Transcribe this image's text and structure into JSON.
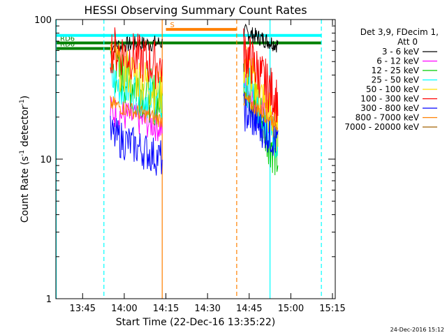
{
  "chart_data": {
    "type": "line",
    "title": "HESSI Observing Summary Count Rates",
    "xlabel": "Start Time (22-Dec-16 13:35:22)",
    "ylabel_main": "Count Rate (s",
    "ylabel_sup1": "-1",
    "ylabel_mid": " detector",
    "ylabel_sup2": "-1",
    "ylabel_end": ")",
    "y_scale": "log",
    "ylim": [
      1,
      100
    ],
    "xlim": [
      "13:35:22",
      "15:16:00"
    ],
    "x_ticks": [
      {
        "t": "13:45",
        "label": "13:45"
      },
      {
        "t": "14:00",
        "label": "14:00"
      },
      {
        "t": "14:15",
        "label": "14:15"
      },
      {
        "t": "14:30",
        "label": "14:30"
      },
      {
        "t": "14:45",
        "label": "14:45"
      },
      {
        "t": "15:00",
        "label": "15:00"
      },
      {
        "t": "15:15",
        "label": "15:15"
      }
    ],
    "y_ticks": [
      {
        "v": 1,
        "label": "1"
      },
      {
        "v": 10,
        "label": "10"
      },
      {
        "v": 100,
        "label": "100"
      }
    ],
    "legend_header": [
      "Det 3,9, FDecim 1,",
      "Att 0"
    ],
    "series": [
      {
        "name": "3 - 6 keV",
        "color": "#000000",
        "segments": [
          {
            "start": "13:55:00",
            "end": "14:13:40",
            "from": 65,
            "to": 68,
            "jitter": 0.06
          },
          {
            "start": "14:43:00",
            "end": "14:55:20",
            "from": 82,
            "to": 66,
            "jitter": 0.06
          }
        ]
      },
      {
        "name": "6 - 12 keV",
        "color": "#ff00ff",
        "segments": [
          {
            "start": "13:55:00",
            "end": "14:13:40",
            "from": 22,
            "to": 17,
            "jitter": 0.12
          },
          {
            "start": "14:43:00",
            "end": "14:55:20",
            "from": 35,
            "to": 16,
            "jitter": 0.12
          }
        ]
      },
      {
        "name": "12 - 25 keV",
        "color": "#00cc00",
        "segments": [
          {
            "start": "13:55:00",
            "end": "14:13:40",
            "from": 45,
            "to": 25,
            "jitter": 0.2
          },
          {
            "start": "14:43:00",
            "end": "14:55:20",
            "from": 40,
            "to": 10,
            "jitter": 0.2
          }
        ]
      },
      {
        "name": "25 - 50 keV",
        "color": "#00ffff",
        "segments": [
          {
            "start": "13:55:00",
            "end": "14:13:40",
            "from": 36,
            "to": 25,
            "jitter": 0.16
          },
          {
            "start": "14:43:00",
            "end": "14:55:20",
            "from": 38,
            "to": 13,
            "jitter": 0.16
          }
        ]
      },
      {
        "name": "50 - 100 keV",
        "color": "#ffe000",
        "segments": [
          {
            "start": "13:55:00",
            "end": "14:13:40",
            "from": 50,
            "to": 30,
            "jitter": 0.18
          },
          {
            "start": "14:43:00",
            "end": "14:55:20",
            "from": 50,
            "to": 16,
            "jitter": 0.18
          }
        ]
      },
      {
        "name": "100 - 300 keV",
        "color": "#ff0000",
        "segments": [
          {
            "start": "13:55:00",
            "end": "14:13:40",
            "from": 62,
            "to": 46,
            "jitter": 0.18
          },
          {
            "start": "14:43:00",
            "end": "14:55:20",
            "from": 60,
            "to": 26,
            "jitter": 0.18
          }
        ]
      },
      {
        "name": "300 - 800 keV",
        "color": "#0000ff",
        "segments": [
          {
            "start": "13:55:00",
            "end": "14:13:40",
            "from": 15,
            "to": 10,
            "jitter": 0.14
          },
          {
            "start": "14:43:00",
            "end": "14:55:20",
            "from": 22,
            "to": 13,
            "jitter": 0.14
          }
        ]
      },
      {
        "name": "800 - 7000 keV",
        "color": "#ff8000",
        "segments": [
          {
            "start": "13:55:00",
            "end": "14:13:40",
            "from": 25,
            "to": 19,
            "jitter": 0.06
          },
          {
            "start": "14:43:00",
            "end": "14:55:20",
            "from": 27,
            "to": 18,
            "jitter": 0.06
          }
        ]
      },
      {
        "name": "7000 - 20000 keV",
        "color": "#a06000",
        "segments": []
      }
    ],
    "flag_bars": [
      {
        "label": "RD6",
        "color": "#008000",
        "start": "13:35:22",
        "end": "15:11:00",
        "y": 68
      },
      {
        "label": "RD6",
        "color": "#008000",
        "start": "13:35:22",
        "end": "13:55:00",
        "y": 62
      },
      {
        "label": "S",
        "color": "#ff8000",
        "start": "14:15:00",
        "end": "14:40:30",
        "y": 85
      },
      {
        "label": "",
        "color": "#00ffff",
        "start": "13:35:22",
        "end": "15:11:00",
        "y": 77
      }
    ],
    "vertical_lines": [
      {
        "t": "13:35:30",
        "color": "#00ffff",
        "style": "solid"
      },
      {
        "t": "13:52:40",
        "color": "#00ffff",
        "style": "dashed"
      },
      {
        "t": "14:13:40",
        "color": "#ff8000",
        "style": "solid"
      },
      {
        "t": "14:40:30",
        "color": "#ff8000",
        "style": "dashed"
      },
      {
        "t": "14:52:30",
        "color": "#00ffff",
        "style": "solid"
      },
      {
        "t": "15:11:00",
        "color": "#00ffff",
        "style": "dashed"
      }
    ],
    "footer_stamp": "24-Dec-2016 15:12"
  }
}
